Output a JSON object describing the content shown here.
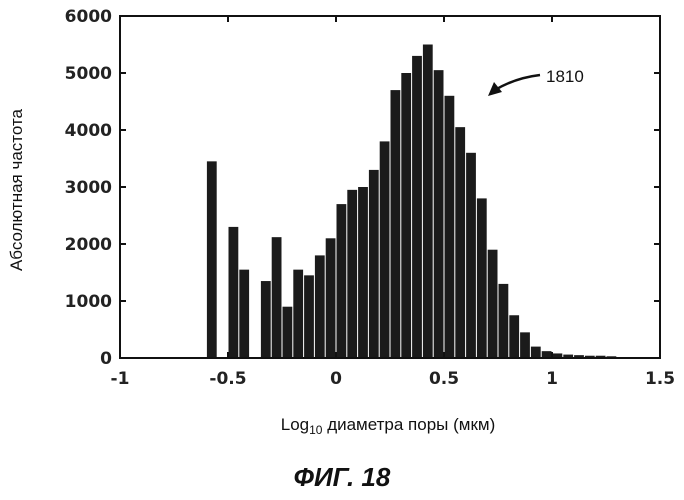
{
  "chart_data": {
    "type": "bar",
    "title": "",
    "xlabel_main": "Log",
    "xlabel_sub": "10",
    "xlabel_rest": " диаметра поры (мкм)",
    "ylabel": "Абсолютная частота",
    "xlim": [
      -1,
      1.5
    ],
    "ylim": [
      0,
      6000
    ],
    "xticks": [
      -1,
      -0.5,
      0,
      0.5,
      1,
      1.5
    ],
    "xtick_labels": [
      "-1",
      "-0.5",
      "0",
      "0.5",
      "1",
      "1.5"
    ],
    "yticks": [
      0,
      1000,
      2000,
      3000,
      4000,
      5000,
      6000
    ],
    "ytick_labels": [
      "0",
      "1000",
      "2000",
      "3000",
      "4000",
      "5000",
      "6000"
    ],
    "bin_width": 0.05,
    "bins_left": [
      -0.6,
      -0.5,
      -0.45,
      -0.35,
      -0.3,
      -0.25,
      -0.2,
      -0.15,
      -0.1,
      -0.05,
      0.0,
      0.05,
      0.1,
      0.15,
      0.2,
      0.25,
      0.3,
      0.35,
      0.4,
      0.45,
      0.5,
      0.55,
      0.6,
      0.65,
      0.7,
      0.75,
      0.8,
      0.85,
      0.9,
      0.95,
      1.0,
      1.05,
      1.1,
      1.15,
      1.2,
      1.25
    ],
    "values": [
      3450,
      2300,
      1550,
      1350,
      2120,
      900,
      1550,
      1450,
      1800,
      2100,
      2700,
      2950,
      3000,
      3300,
      3800,
      4700,
      5000,
      5300,
      5500,
      5050,
      4600,
      4050,
      3600,
      2800,
      1900,
      1300,
      750,
      450,
      200,
      120,
      80,
      60,
      50,
      40,
      40,
      30
    ],
    "annotation": "1810"
  },
  "caption": "ФИГ. 18",
  "colors": {
    "bar": "#1b1b1b",
    "axis": "#111111"
  }
}
